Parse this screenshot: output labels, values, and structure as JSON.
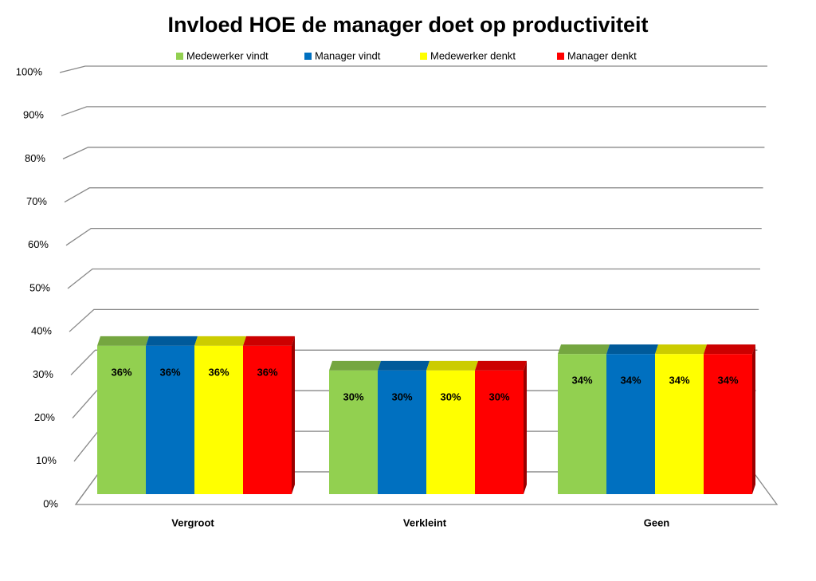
{
  "chart_data": {
    "type": "bar3d",
    "title": "Invloed HOE de manager doet op productiviteit",
    "categories": [
      "Vergroot",
      "Verkleint",
      "Geen"
    ],
    "series": [
      {
        "name": "Medewerker vindt",
        "color": "#92d050",
        "values": [
          36,
          30,
          34
        ],
        "value_labels": [
          "36%",
          "30%",
          "34%"
        ]
      },
      {
        "name": "Manager vindt",
        "color": "#0070c0",
        "values": [
          36,
          30,
          34
        ],
        "value_labels": [
          "36%",
          "30%",
          "34%"
        ]
      },
      {
        "name": "Medewerker denkt",
        "color": "#ffff00",
        "values": [
          36,
          30,
          34
        ],
        "value_labels": [
          "36%",
          "30%",
          "34%"
        ]
      },
      {
        "name": "Manager denkt",
        "color": "#ff0000",
        "values": [
          36,
          30,
          34
        ],
        "value_labels": [
          "36%",
          "30%",
          "34%"
        ]
      }
    ],
    "ylim": [
      0,
      100
    ],
    "yticks": [
      {
        "value": 0,
        "label": "0%"
      },
      {
        "value": 10,
        "label": "10%"
      },
      {
        "value": 20,
        "label": "20%"
      },
      {
        "value": 30,
        "label": "30%"
      },
      {
        "value": 40,
        "label": "40%"
      },
      {
        "value": 50,
        "label": "50%"
      },
      {
        "value": 60,
        "label": "60%"
      },
      {
        "value": 70,
        "label": "70%"
      },
      {
        "value": 80,
        "label": "80%"
      },
      {
        "value": 90,
        "label": "90%"
      },
      {
        "value": 100,
        "label": "100%"
      }
    ],
    "grid": true,
    "legend": "top"
  }
}
